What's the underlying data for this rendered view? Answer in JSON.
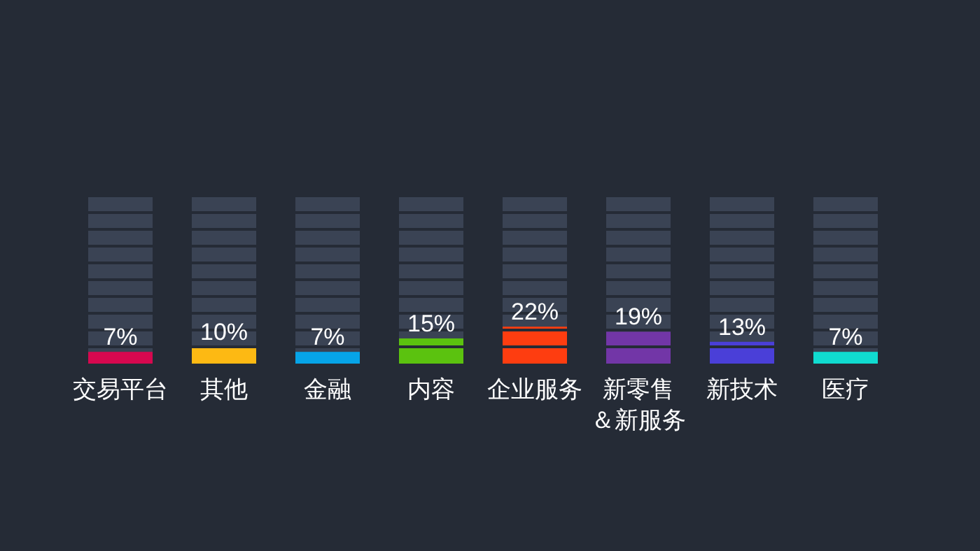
{
  "chart_data": {
    "type": "bar",
    "categories": [
      "交易平台",
      "其他",
      "金融",
      "内容",
      "企业服务",
      "新零售＆新服务",
      "新技术",
      "医疗"
    ],
    "values": [
      7,
      10,
      7,
      15,
      22,
      19,
      13,
      7
    ],
    "value_labels": [
      "7%",
      "10%",
      "7%",
      "15%",
      "22%",
      "19%",
      "13%",
      "7%"
    ],
    "colors": [
      "#d6084f",
      "#fdb913",
      "#06a4e8",
      "#5bc20f",
      "#fe3d10",
      "#7236a7",
      "#4a3fd8",
      "#10dbd0"
    ],
    "ylim": [
      0,
      100
    ],
    "yticks": [
      {
        "value": 10,
        "label": null
      },
      {
        "value": 20,
        "label": null
      },
      {
        "value": 30,
        "label": null
      },
      {
        "value": 40,
        "label": null
      },
      {
        "value": 50,
        "label": null
      },
      {
        "value": 60,
        "label": null
      },
      {
        "value": 70,
        "label": null
      },
      {
        "value": 80,
        "label": null
      },
      {
        "value": 90,
        "label": null
      },
      {
        "value": 100,
        "label": null
      }
    ],
    "grid": "y"
  }
}
